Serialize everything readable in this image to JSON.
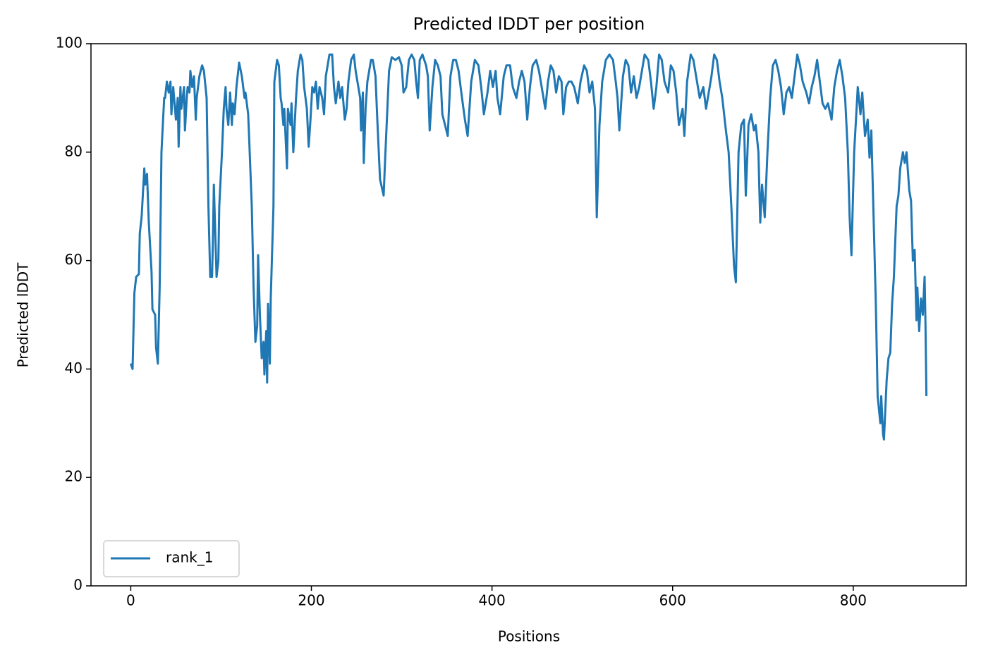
{
  "chart_data": {
    "type": "line",
    "title": "Predicted lDDT per position",
    "x_label": "Positions",
    "y_label": "Predicted lDDT",
    "xlim": [
      -44.05,
      925.05
    ],
    "xticks": [
      0,
      200,
      400,
      600,
      800
    ],
    "ylim": [
      0,
      100
    ],
    "yticks": [
      0,
      20,
      40,
      60,
      80,
      100
    ],
    "grid": false,
    "legend": "lower left",
    "x": [
      0,
      2,
      4,
      6,
      9,
      10,
      12,
      15,
      16,
      18,
      20,
      23,
      24,
      27,
      28,
      30,
      32,
      34,
      37,
      38,
      40,
      42,
      44,
      45,
      47,
      48,
      50,
      52,
      53,
      55,
      56,
      59,
      60,
      62,
      63,
      65,
      66,
      68,
      70,
      72,
      73,
      76,
      79,
      81,
      84,
      86,
      88,
      90,
      91,
      92,
      95,
      97,
      98,
      101,
      103,
      105,
      106,
      108,
      110,
      112,
      113,
      115,
      117,
      120,
      123,
      126,
      127,
      130,
      131,
      134,
      136,
      138,
      140,
      141,
      143,
      145,
      147,
      148,
      150,
      151,
      152,
      154,
      155,
      158,
      159,
      162,
      164,
      166,
      167,
      169,
      170,
      173,
      174,
      177,
      178,
      180,
      183,
      185,
      188,
      190,
      192,
      195,
      197,
      199,
      201,
      203,
      205,
      207,
      209,
      212,
      214,
      216,
      220,
      223,
      225,
      227,
      230,
      232,
      234,
      237,
      239,
      241,
      244,
      247,
      249,
      252,
      254,
      255,
      257,
      258,
      260,
      262,
      266,
      268,
      271,
      273,
      276,
      280,
      282,
      286,
      289,
      293,
      297,
      300,
      302,
      305,
      308,
      311,
      314,
      316,
      318,
      320,
      323,
      327,
      329,
      331,
      334,
      337,
      340,
      343,
      345,
      348,
      351,
      354,
      357,
      360,
      363,
      366,
      370,
      373,
      377,
      381,
      385,
      388,
      391,
      395,
      398,
      401,
      404,
      406,
      409,
      413,
      416,
      420,
      423,
      427,
      430,
      433,
      436,
      439,
      442,
      445,
      449,
      452,
      455,
      459,
      462,
      465,
      468,
      471,
      474,
      477,
      479,
      482,
      485,
      488,
      491,
      495,
      498,
      502,
      505,
      508,
      511,
      514,
      516,
      519,
      522,
      526,
      530,
      534,
      537,
      539,
      541,
      545,
      548,
      551,
      554,
      557,
      560,
      563,
      566,
      569,
      573,
      576,
      579,
      582,
      585,
      588,
      591,
      595,
      598,
      601,
      604,
      607,
      611,
      613,
      616,
      620,
      623,
      627,
      630,
      634,
      637,
      640,
      643,
      646,
      649,
      652,
      655,
      659,
      662,
      665,
      668,
      670,
      673,
      676,
      679,
      681,
      684,
      687,
      690,
      692,
      695,
      697,
      699,
      702,
      705,
      708,
      711,
      714,
      717,
      720,
      723,
      726,
      729,
      732,
      735,
      738,
      741,
      744,
      748,
      751,
      754,
      757,
      760,
      763,
      766,
      769,
      772,
      776,
      779,
      782,
      785,
      788,
      791,
      794,
      796,
      798,
      801,
      803,
      805,
      808,
      810,
      813,
      816,
      818,
      820,
      823,
      825,
      827,
      830,
      831,
      833,
      834,
      837,
      839,
      841,
      843,
      845,
      848,
      850,
      852,
      855,
      857,
      859,
      862,
      864,
      866,
      868,
      870,
      871,
      873,
      875,
      877,
      879,
      880,
      881
    ],
    "series": [
      {
        "name": "rank_1",
        "color": "#1f77b4",
        "values": [
          41,
          40,
          54,
          57,
          57.5,
          65,
          68,
          77,
          74,
          76,
          67,
          58,
          51,
          50,
          44,
          41,
          55,
          80,
          90,
          90,
          93,
          91,
          93,
          87,
          92,
          90,
          86,
          90,
          81,
          92,
          88,
          92,
          84,
          90,
          92,
          91,
          95,
          92,
          94,
          86,
          90,
          94,
          96,
          95,
          90,
          70,
          57,
          57,
          64,
          74,
          57,
          60,
          70,
          80,
          88,
          92,
          88,
          85,
          91,
          85,
          89,
          87,
          92,
          96.5,
          94,
          90,
          91,
          87,
          83,
          70,
          55,
          45,
          48,
          61,
          50,
          42,
          45,
          39,
          47,
          37.5,
          52,
          41,
          53,
          70,
          93,
          97,
          96,
          90,
          89,
          85,
          88,
          77,
          88,
          85,
          89,
          80,
          90,
          95,
          98,
          97,
          92,
          88,
          81,
          86,
          92,
          91,
          93,
          88,
          92,
          90,
          87,
          94,
          98,
          98,
          92,
          89,
          93,
          90,
          92,
          86,
          88,
          93,
          97,
          98,
          95,
          92,
          90,
          84,
          91,
          78,
          88,
          93,
          97,
          97,
          94,
          86,
          75,
          72,
          80,
          95,
          97.5,
          97,
          97.5,
          96,
          91,
          92,
          97,
          98,
          97,
          93,
          90,
          97,
          98,
          96,
          94,
          84,
          92,
          97,
          96,
          94,
          87,
          85,
          83,
          94,
          97,
          97,
          95,
          91,
          86,
          83,
          93,
          97,
          96,
          92,
          87,
          91,
          95,
          92,
          95,
          90,
          87,
          94,
          96,
          96,
          92,
          90,
          93,
          95,
          93,
          86,
          92,
          96,
          97,
          95,
          92,
          88,
          93,
          96,
          95,
          91,
          94,
          93,
          87,
          92,
          93,
          93,
          92,
          89,
          93,
          96,
          95,
          91,
          93,
          88,
          68,
          85,
          93,
          97,
          98,
          97,
          93,
          90,
          84,
          94,
          97,
          96,
          91,
          94,
          90,
          92,
          95,
          98,
          97,
          93,
          88,
          92,
          98,
          97,
          93,
          91,
          96,
          95,
          91,
          85,
          88,
          83,
          93,
          98,
          97,
          93,
          90,
          92,
          88,
          91,
          94,
          98,
          97,
          93,
          90,
          84,
          80,
          70,
          59,
          56,
          80,
          85,
          86,
          72,
          85,
          87,
          84,
          85,
          80,
          67,
          74,
          68,
          80,
          90,
          96,
          97,
          95,
          92,
          87,
          91,
          92,
          90,
          94,
          98,
          96,
          93,
          91,
          89,
          92,
          94,
          97,
          93,
          89,
          88,
          89,
          86,
          92,
          95,
          97,
          94,
          90,
          80,
          68,
          61,
          80,
          86,
          92,
          87,
          91,
          83,
          86,
          79,
          84,
          65,
          52,
          35,
          30,
          35,
          28,
          27,
          38,
          42,
          43,
          52,
          57,
          70,
          72,
          77,
          80,
          78,
          80,
          73,
          71,
          60,
          62,
          49,
          55,
          47,
          53,
          50,
          57,
          48,
          35
        ]
      }
    ]
  }
}
